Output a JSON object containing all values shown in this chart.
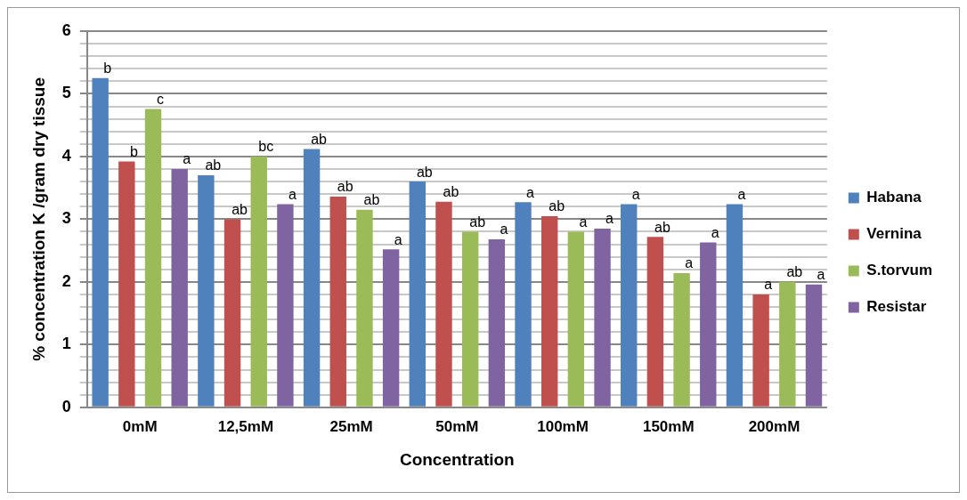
{
  "chart_data": {
    "type": "bar",
    "xlabel": "Concentration",
    "ylabel": "% concentration K /gram dry tissue",
    "categories": [
      "0mM",
      "12,5mM",
      "25mM",
      "50mM",
      "100mM",
      "150mM",
      "200mM"
    ],
    "series": [
      {
        "name": "Habana",
        "color": "#4f81bd",
        "values": [
          5.25,
          3.7,
          4.12,
          3.6,
          3.27,
          3.24,
          3.24
        ],
        "value_labels": [
          "b",
          "ab",
          "ab",
          "ab",
          "a",
          "a",
          "a"
        ]
      },
      {
        "name": "Vernina",
        "color": "#c0504d",
        "values": [
          3.92,
          3.0,
          3.36,
          3.28,
          3.05,
          2.72,
          1.8
        ],
        "value_labels": [
          "b",
          "ab",
          "ab",
          "ab",
          "ab",
          "ab",
          "a"
        ]
      },
      {
        "name": "S.torvum",
        "color": "#9bbb59",
        "values": [
          4.76,
          4.0,
          3.15,
          2.8,
          2.8,
          2.14,
          2.0
        ],
        "value_labels": [
          "c",
          "bc",
          "ab",
          "ab",
          "a",
          "a",
          "ab"
        ]
      },
      {
        "name": "Resistar",
        "color": "#8064a2",
        "values": [
          3.8,
          3.24,
          2.52,
          2.68,
          2.85,
          2.63,
          1.96
        ],
        "value_labels": [
          "a",
          "a",
          "a",
          "a",
          "a",
          "a",
          "a"
        ]
      }
    ],
    "ylim": [
      0,
      6
    ],
    "yticks": [
      0,
      {
        "value": 0.2,
        "label": null
      },
      {
        "value": 0.4,
        "label": null
      },
      {
        "value": 0.6,
        "label": null
      },
      {
        "value": 0.8,
        "label": null
      },
      1,
      {
        "value": 1.2,
        "label": null
      },
      {
        "value": 1.4,
        "label": null
      },
      {
        "value": 1.6,
        "label": null
      },
      {
        "value": 1.8,
        "label": null
      },
      2,
      {
        "value": 2.2,
        "label": null
      },
      {
        "value": 2.4,
        "label": null
      },
      {
        "value": 2.6,
        "label": null
      },
      {
        "value": 2.8,
        "label": null
      },
      3,
      {
        "value": 3.2,
        "label": null
      },
      {
        "value": 3.4,
        "label": null
      },
      {
        "value": 3.6,
        "label": null
      },
      {
        "value": 3.8,
        "label": null
      },
      4,
      {
        "value": 4.2,
        "label": null
      },
      {
        "value": 4.4,
        "label": null
      },
      {
        "value": 4.6,
        "label": null
      },
      {
        "value": 4.8,
        "label": null
      },
      5,
      {
        "value": 5.2,
        "label": null
      },
      {
        "value": 5.4,
        "label": null
      },
      {
        "value": 5.6,
        "label": null
      },
      {
        "value": 5.8,
        "label": null
      },
      6
    ],
    "grid": "y",
    "legend": "right"
  }
}
